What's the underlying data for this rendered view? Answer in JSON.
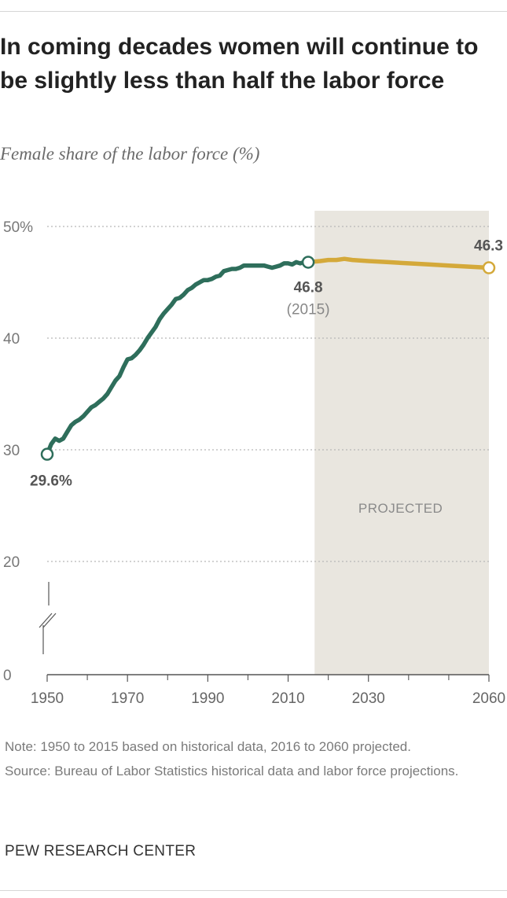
{
  "title": "In coming decades women will continue to be slightly less than half the labor force",
  "subtitle": "Female share of the labor force (%)",
  "notes": {
    "note": "Note: 1950 to 2015 based on historical data, 2016 to 2060 projected.",
    "source": "Source: Bureau of Labor Statistics historical data and labor force projections."
  },
  "brand": "PEW RESEARCH CENTER",
  "colors": {
    "historical": "#2e6e5b",
    "projected": "#d4a93a",
    "projected_band": "#e9e6df",
    "grid": "#b8b8b8",
    "axis_text": "#777777",
    "label_text": "#555555"
  },
  "chart_data": {
    "type": "line",
    "title": "In coming decades women will continue to be slightly less than half the labor force",
    "ylabel": "Female share of the labor force (%)",
    "xlabel": "",
    "xlim": [
      1950,
      2060
    ],
    "ylim": [
      0,
      50
    ],
    "y_axis_break": true,
    "grid": true,
    "y_ticks": [
      {
        "value": 50,
        "label": "50%"
      },
      {
        "value": 40,
        "label": "40"
      },
      {
        "value": 30,
        "label": "30"
      },
      {
        "value": 20,
        "label": "20"
      },
      {
        "value": 0,
        "label": "0"
      }
    ],
    "x_ticks": [
      {
        "value": 1950,
        "label": "1950"
      },
      {
        "value": 1970,
        "label": "1970"
      },
      {
        "value": 1990,
        "label": "1990"
      },
      {
        "value": 2010,
        "label": "2010"
      },
      {
        "value": 2030,
        "label": "2030"
      },
      {
        "value": 2060,
        "label": "2060"
      }
    ],
    "minor_x_ticks": [
      1960,
      1980,
      2000,
      2020,
      2040,
      2050
    ],
    "projected_region": {
      "from": 2016,
      "to": 2060,
      "label": "PROJECTED"
    },
    "series": [
      {
        "key": "historical",
        "x": [
          1950,
          1951,
          1952,
          1953,
          1954,
          1955,
          1956,
          1957,
          1958,
          1959,
          1960,
          1961,
          1962,
          1963,
          1964,
          1965,
          1966,
          1967,
          1968,
          1969,
          1970,
          1971,
          1972,
          1973,
          1974,
          1975,
          1976,
          1977,
          1978,
          1979,
          1980,
          1981,
          1982,
          1983,
          1984,
          1985,
          1986,
          1987,
          1988,
          1989,
          1990,
          1991,
          1992,
          1993,
          1994,
          1995,
          1996,
          1997,
          1998,
          1999,
          2000,
          2001,
          2002,
          2003,
          2004,
          2005,
          2006,
          2007,
          2008,
          2009,
          2010,
          2011,
          2012,
          2013,
          2014,
          2015
        ],
        "values": [
          29.6,
          30.5,
          31.0,
          30.8,
          31.0,
          31.6,
          32.2,
          32.5,
          32.7,
          33.0,
          33.4,
          33.8,
          34.0,
          34.3,
          34.6,
          35.0,
          35.6,
          36.2,
          36.6,
          37.4,
          38.1,
          38.2,
          38.5,
          38.9,
          39.4,
          40.0,
          40.5,
          41.0,
          41.7,
          42.2,
          42.6,
          43.0,
          43.5,
          43.6,
          43.9,
          44.3,
          44.5,
          44.8,
          45.0,
          45.2,
          45.2,
          45.3,
          45.5,
          45.6,
          46.0,
          46.1,
          46.2,
          46.2,
          46.3,
          46.5,
          46.5,
          46.5,
          46.5,
          46.5,
          46.5,
          46.4,
          46.3,
          46.4,
          46.5,
          46.7,
          46.7,
          46.6,
          46.8,
          46.7,
          46.8,
          46.8
        ]
      },
      {
        "key": "projected",
        "x": [
          2015,
          2018,
          2020,
          2022,
          2024,
          2026,
          2030,
          2035,
          2040,
          2045,
          2050,
          2055,
          2060
        ],
        "values": [
          46.8,
          46.9,
          47.0,
          47.0,
          47.1,
          47.0,
          46.9,
          46.8,
          46.7,
          46.6,
          46.5,
          46.4,
          46.3
        ]
      }
    ],
    "annotations": [
      {
        "x": 1950,
        "y": 29.6,
        "label": "29.6%"
      },
      {
        "x": 2015,
        "y": 46.8,
        "label": "46.8",
        "sublabel": "(2015)"
      },
      {
        "x": 2060,
        "y": 46.3,
        "label": "46.3"
      }
    ]
  }
}
